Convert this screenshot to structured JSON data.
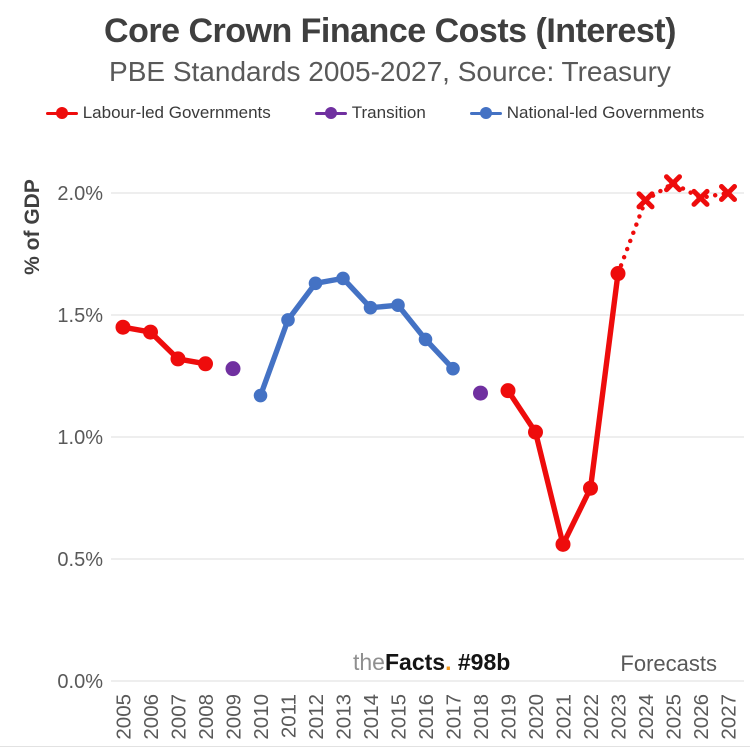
{
  "header": {
    "title": "Core Crown Finance Costs (Interest)",
    "subtitle": "PBE Standards 2005-2027, Source: Treasury"
  },
  "legend": [
    {
      "label": "Labour-led Governments",
      "color": "#ee0c0c"
    },
    {
      "label": "Transition",
      "color": "#7030a0"
    },
    {
      "label": "National-led Governments",
      "color": "#4472c4"
    }
  ],
  "axes": {
    "y_label": "% of GDP",
    "y_ticks": [
      "2.0%",
      "1.5%",
      "1.0%",
      "0.5%",
      "0.0%"
    ]
  },
  "footer": {
    "watermark": {
      "the": "the",
      "facts": "Facts",
      "dot": ".",
      "code": " #98b"
    },
    "forecasts_label": "Forecasts"
  },
  "colors": {
    "labour_red": "#ee0c0c",
    "transition_purple": "#7030a0",
    "national_blue": "#4472c4",
    "gridline": "#dedede",
    "title_text": "#3f3f3f",
    "muted_text": "#595959",
    "watermark_orange": "#f5991e"
  },
  "chart_data": {
    "type": "line",
    "title": "Core Crown Finance Costs (Interest)",
    "subtitle": "PBE Standards 2005-2027, Source: Treasury",
    "xlabel": "",
    "ylabel": "% of GDP",
    "ylim": [
      0,
      2.2
    ],
    "grid": "horizontal",
    "legend_position": "top",
    "x": [
      2005,
      2006,
      2007,
      2008,
      2009,
      2010,
      2011,
      2012,
      2013,
      2014,
      2015,
      2016,
      2017,
      2018,
      2019,
      2020,
      2021,
      2022,
      2023,
      2024,
      2025,
      2026,
      2027
    ],
    "series": [
      {
        "key": "labour-2005-2008",
        "name": "Labour-led Governments",
        "color": "#ee0c0c",
        "line": "solid",
        "marker": "circle",
        "marker_r": 7.5,
        "x": [
          2005,
          2006,
          2007,
          2008
        ],
        "y": [
          1.45,
          1.43,
          1.32,
          1.3
        ]
      },
      {
        "key": "transition",
        "name": "Transition",
        "color": "#7030a0",
        "line": "none",
        "marker": "circle",
        "marker_r": 7.5,
        "x": [
          2009,
          2018
        ],
        "y": [
          1.28,
          1.18
        ]
      },
      {
        "key": "national-2010-2017",
        "name": "National-led Governments",
        "color": "#4472c4",
        "line": "solid",
        "marker": "circle",
        "marker_r": 6.8,
        "x": [
          2010,
          2011,
          2012,
          2013,
          2014,
          2015,
          2016,
          2017
        ],
        "y": [
          1.17,
          1.48,
          1.63,
          1.65,
          1.53,
          1.54,
          1.4,
          1.28
        ]
      },
      {
        "key": "labour-2019-2023",
        "name": "Labour-led Governments",
        "color": "#ee0c0c",
        "line": "solid",
        "marker": "circle",
        "marker_r": 7.5,
        "x": [
          2019,
          2020,
          2021,
          2022,
          2023
        ],
        "y": [
          1.19,
          1.02,
          0.56,
          0.79,
          1.67
        ]
      },
      {
        "key": "labour-forecast",
        "name": "Labour-led Governments (forecast)",
        "color": "#ee0c0c",
        "line": "dotted",
        "marker": "x",
        "marker_from": 1,
        "marker_r": 6.5,
        "x": [
          2023,
          2024,
          2025,
          2026,
          2027
        ],
        "y": [
          1.67,
          1.97,
          2.04,
          1.98,
          2.0
        ]
      }
    ]
  }
}
